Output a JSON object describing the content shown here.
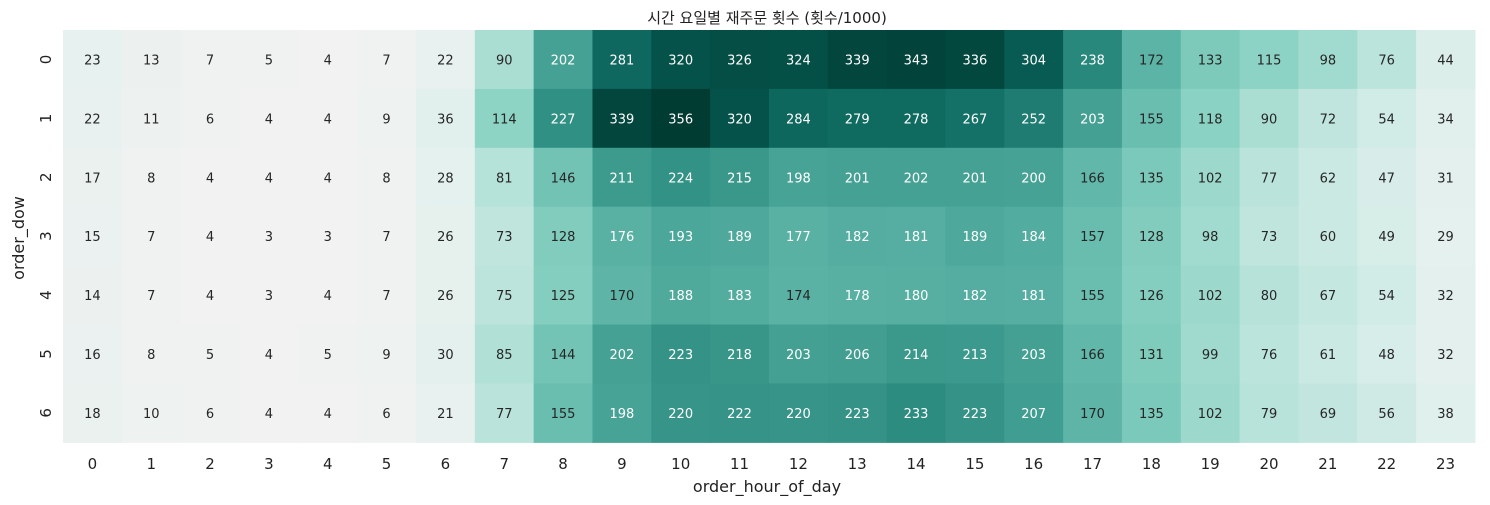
{
  "chart_data": {
    "type": "heatmap",
    "title": "시간 요일별 재주문 횟수 (횟수/1000)",
    "xlabel": "order_hour_of_day",
    "ylabel": "order_dow",
    "x": [
      "0",
      "1",
      "2",
      "3",
      "4",
      "5",
      "6",
      "7",
      "8",
      "9",
      "10",
      "11",
      "12",
      "13",
      "14",
      "15",
      "16",
      "17",
      "18",
      "19",
      "20",
      "21",
      "22",
      "23"
    ],
    "y": [
      "0",
      "1",
      "2",
      "3",
      "4",
      "5",
      "6"
    ],
    "values": [
      [
        23,
        13,
        7,
        5,
        4,
        7,
        22,
        90,
        202,
        281,
        320,
        326,
        324,
        339,
        343,
        336,
        304,
        238,
        172,
        133,
        115,
        98,
        76,
        44
      ],
      [
        22,
        11,
        6,
        4,
        4,
        9,
        36,
        114,
        227,
        339,
        356,
        320,
        284,
        279,
        278,
        267,
        252,
        203,
        155,
        118,
        90,
        72,
        54,
        34
      ],
      [
        17,
        8,
        4,
        4,
        4,
        8,
        28,
        81,
        146,
        211,
        224,
        215,
        198,
        201,
        202,
        201,
        200,
        166,
        135,
        102,
        77,
        62,
        47,
        31
      ],
      [
        15,
        7,
        4,
        3,
        3,
        7,
        26,
        73,
        128,
        176,
        193,
        189,
        177,
        182,
        181,
        189,
        184,
        157,
        128,
        98,
        73,
        60,
        49,
        29
      ],
      [
        14,
        7,
        4,
        3,
        4,
        7,
        26,
        75,
        125,
        170,
        188,
        183,
        174,
        178,
        180,
        182,
        181,
        155,
        126,
        102,
        80,
        67,
        54,
        32
      ],
      [
        16,
        8,
        5,
        4,
        5,
        9,
        30,
        85,
        144,
        202,
        223,
        218,
        203,
        206,
        214,
        213,
        203,
        166,
        131,
        99,
        76,
        61,
        48,
        32
      ],
      [
        18,
        10,
        6,
        4,
        4,
        6,
        21,
        77,
        155,
        198,
        220,
        222,
        220,
        223,
        233,
        223,
        207,
        170,
        135,
        102,
        79,
        69,
        56,
        38
      ]
    ],
    "color_scale": {
      "type": "sequential",
      "low_color": "#f1f2f1",
      "high_color": "#013c33",
      "vmin": 3,
      "vmax": 356
    },
    "annotations": "cell values shown",
    "colorbar": false,
    "grid": false,
    "legend": "none"
  }
}
